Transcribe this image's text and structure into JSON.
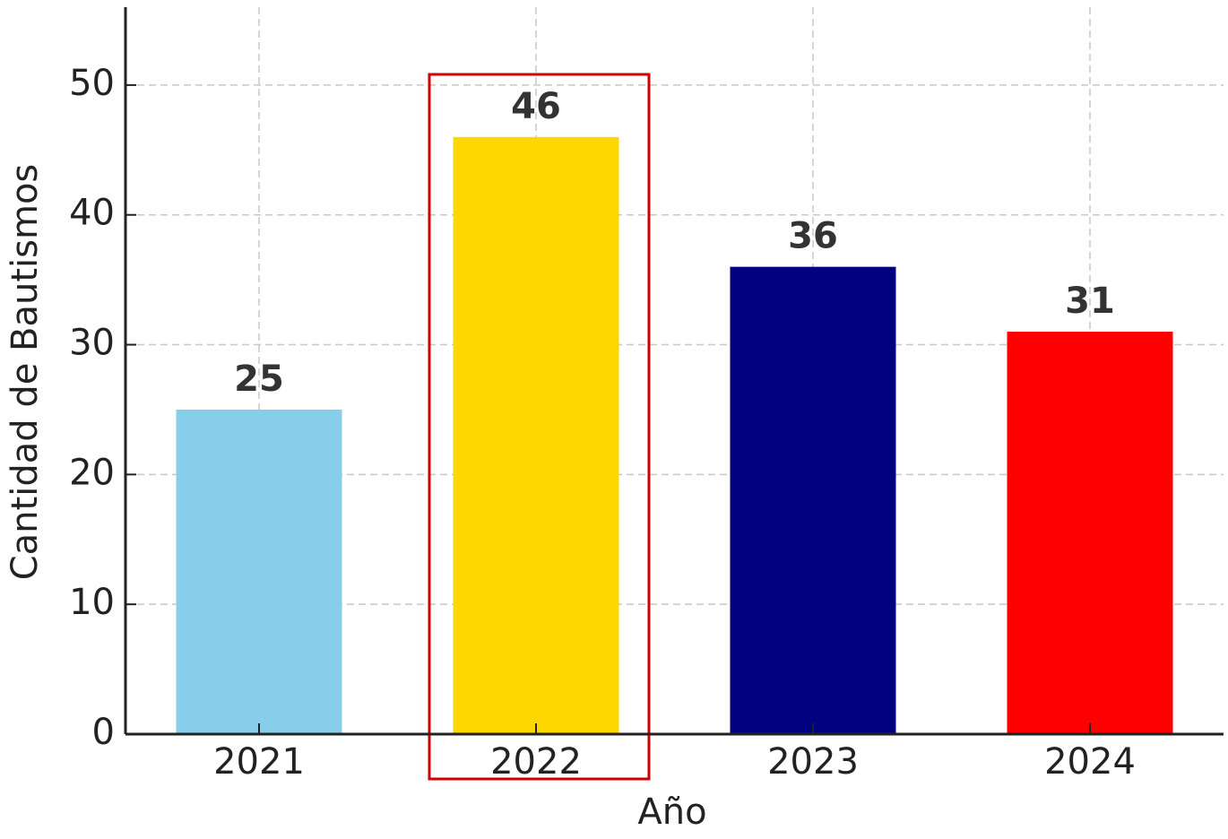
{
  "chart_data": {
    "type": "bar",
    "x_label": "Año",
    "y_label": "Cantidad de Bautismos",
    "categories": [
      "2021",
      "2022",
      "2023",
      "2024"
    ],
    "values": [
      25,
      46,
      36,
      31
    ],
    "colors": [
      "#87ceeb",
      "#ffd700",
      "#000080",
      "#ff0000"
    ],
    "ylim": [
      0,
      56
    ],
    "yticks": [
      0,
      10,
      20,
      30,
      40,
      50
    ],
    "grid": true
  }
}
